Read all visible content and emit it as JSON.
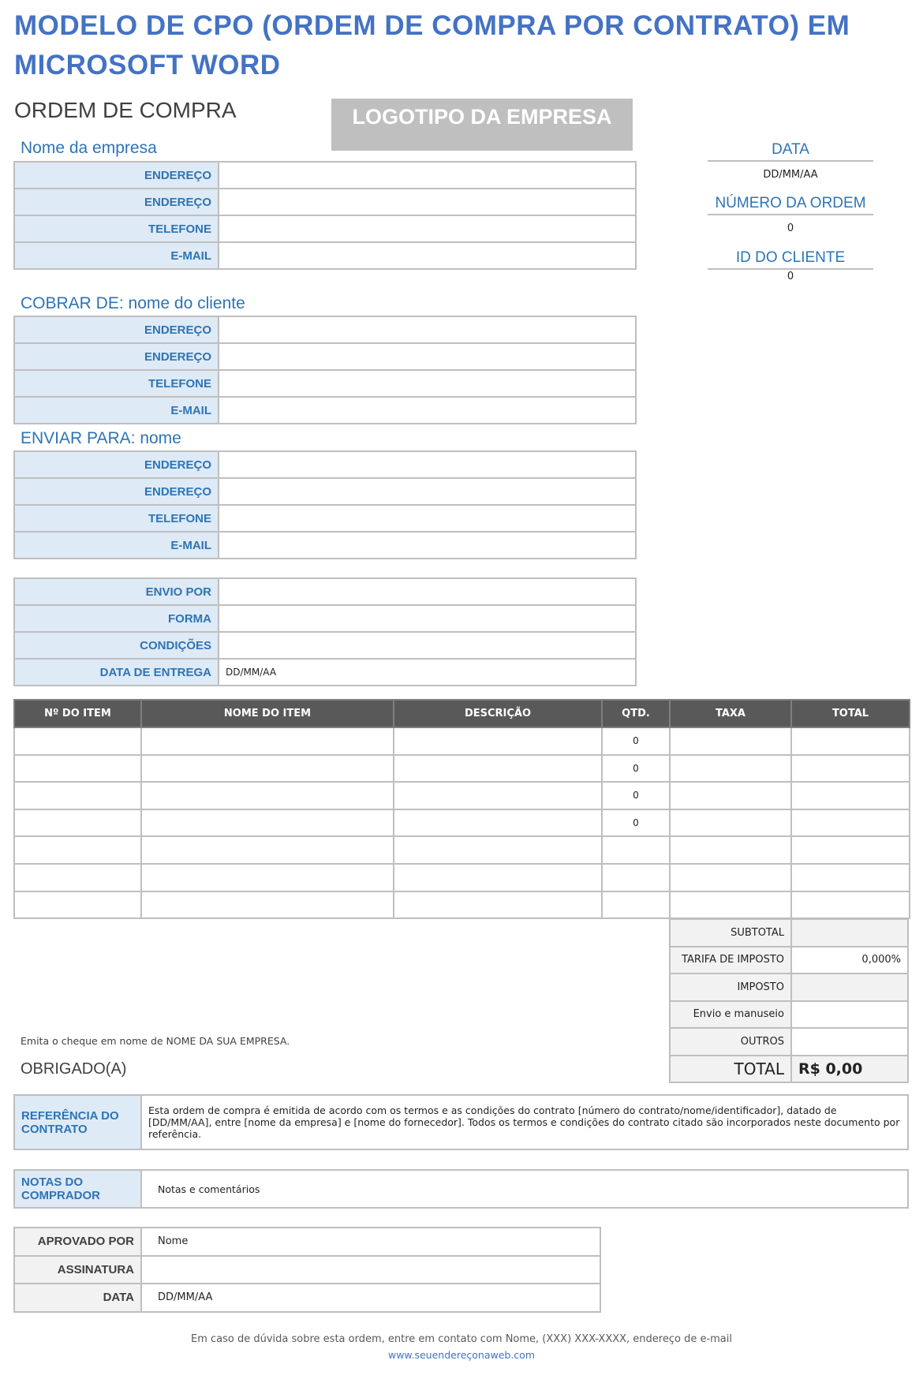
{
  "title_line1": "MODELO DE CPO (ORDEM DE COMPRA POR CONTRATO) EM",
  "title_line2": "MICROSOFT WORD",
  "heading": "ORDEM DE COMPRA",
  "logo": "LOGOTIPO DA EMPRESA",
  "company": {
    "name": "Nome da empresa",
    "rows": [
      {
        "label": "ENDEREÇO",
        "value": ""
      },
      {
        "label": "ENDEREÇO",
        "value": ""
      },
      {
        "label": "TELEFONE",
        "value": ""
      },
      {
        "label": "E-MAIL",
        "value": ""
      }
    ]
  },
  "bill_to": {
    "name": "COBRAR DE: nome do cliente",
    "rows": [
      {
        "label": "ENDEREÇO",
        "value": ""
      },
      {
        "label": "ENDEREÇO",
        "value": ""
      },
      {
        "label": "TELEFONE",
        "value": ""
      },
      {
        "label": "E-MAIL",
        "value": ""
      }
    ]
  },
  "ship_to": {
    "name": "ENVIAR PARA: nome",
    "rows": [
      {
        "label": "ENDEREÇO",
        "value": ""
      },
      {
        "label": "ENDEREÇO",
        "value": ""
      },
      {
        "label": "TELEFONE",
        "value": ""
      },
      {
        "label": "E-MAIL",
        "value": ""
      }
    ]
  },
  "shipping": {
    "rows": [
      {
        "label": "ENVIO POR",
        "value": ""
      },
      {
        "label": "FORMA",
        "value": ""
      },
      {
        "label": "CONDIÇÕES",
        "value": ""
      },
      {
        "label": "DATA DE ENTREGA",
        "value": "DD/MM/AA"
      }
    ]
  },
  "meta": {
    "date_label": "DATA",
    "date_value": "DD/MM/AA",
    "order_label": "NÚMERO DA ORDEM",
    "order_value": "0",
    "client_label": "ID DO CLIENTE",
    "client_value": "0"
  },
  "items": {
    "headers": [
      "Nº DO ITEM",
      "NOME DO ITEM",
      "DESCRIÇÃO",
      "QTD.",
      "TAXA",
      "TOTAL"
    ],
    "rows": [
      [
        "",
        "",
        "",
        "0",
        "",
        ""
      ],
      [
        "",
        "",
        "",
        "0",
        "",
        ""
      ],
      [
        "",
        "",
        "",
        "0",
        "",
        ""
      ],
      [
        "",
        "",
        "",
        "0",
        "",
        ""
      ],
      [
        "",
        "",
        "",
        "",
        "",
        ""
      ],
      [
        "",
        "",
        "",
        "",
        "",
        ""
      ],
      [
        "",
        "",
        "",
        "",
        "",
        ""
      ]
    ]
  },
  "totals": [
    {
      "label": "SUBTOTAL",
      "value": ""
    },
    {
      "label": "TARIFA DE IMPOSTO",
      "value": "0,000%"
    },
    {
      "label": "IMPOSTO",
      "value": ""
    },
    {
      "label": "Envio e manuseio",
      "value": ""
    },
    {
      "label": "OUTROS",
      "value": ""
    }
  ],
  "total": {
    "label": "TOTAL",
    "value": "R$ 0,00"
  },
  "cheque_note": "Emita o cheque em nome de NOME DA SUA EMPRESA.",
  "thanks": "OBRIGADO(A)",
  "contract": {
    "label": "REFERÊNCIA DO CONTRATO",
    "text": "Esta ordem de compra é emitida de acordo com os termos e as condições do contrato [número do contrato/nome/identificador], datado de [DD/MM/AA], entre [nome da empresa] e [nome do fornecedor]. Todos os termos e condições do contrato citado são incorporados neste documento por referência."
  },
  "notes": {
    "label": "NOTAS DO COMPRADOR",
    "text": "Notas e comentários"
  },
  "approval": [
    {
      "label": "APROVADO POR",
      "value": "Nome"
    },
    {
      "label": "ASSINATURA",
      "value": ""
    },
    {
      "label": "DATA",
      "value": "DD/MM/AA"
    }
  ],
  "footer": {
    "contact": "Em caso de dúvida sobre esta ordem, entre em contato com Nome, (XXX) XXX-XXXX, endereço de e-mail",
    "url": "www.seuendereçonaweb.com"
  },
  "colors": {
    "title": "#4472c4",
    "label": "#2e74b5",
    "label_bg": "#deeaf6",
    "header_bg": "#595959",
    "gray_bg": "#f2f2f2"
  }
}
